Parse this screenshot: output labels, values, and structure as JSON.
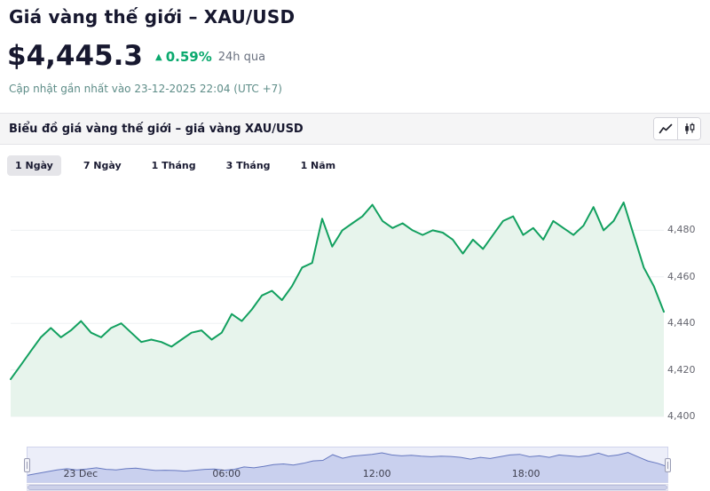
{
  "page_title": "Giá vàng thế giới – XAU/USD",
  "price_header": {
    "value": "$4,445.3",
    "direction_icon": "▲",
    "change_percent": "0.59%",
    "period_label": "24h qua",
    "updated_text": "Cập nhật gần nhất vào 23-12-2025 22:04 (UTC +7)",
    "up_color": "#0ba96e"
  },
  "panel": {
    "title": "Biểu đồ giá vàng thế giới – giá vàng XAU/USD",
    "icons": {
      "line_chart": "line-chart-icon",
      "candlestick": "candlestick-icon"
    }
  },
  "tabs": [
    {
      "label": "1 Ngày",
      "active": true
    },
    {
      "label": "7 Ngày",
      "active": false
    },
    {
      "label": "1 Tháng",
      "active": false
    },
    {
      "label": "3 Tháng",
      "active": false
    },
    {
      "label": "1 Năm",
      "active": false
    }
  ],
  "chart_data": {
    "type": "area",
    "title": "Biểu đồ giá vàng thế giới – giá vàng XAU/USD",
    "legend": "none",
    "grid": true,
    "ylim": [
      4400,
      4500
    ],
    "line_color": "#12a05f",
    "fill_color": "#e7f4ec",
    "grid_color": "#eef0f3",
    "nav_line_color": "#6678c0",
    "nav_fill_color": "#c9d0ee",
    "y_ticks": [
      {
        "label": "4,480",
        "value": 4480
      },
      {
        "label": "4,460",
        "value": 4460
      },
      {
        "label": "4,440",
        "value": 4440
      },
      {
        "label": "4,420",
        "value": 4420
      },
      {
        "label": "4,400",
        "value": 4400
      }
    ],
    "x_ticks": [
      {
        "label": "23 Dec",
        "pos": 0.083
      },
      {
        "label": "06:00",
        "pos": 0.311
      },
      {
        "label": "12:00",
        "pos": 0.546
      },
      {
        "label": "18:00",
        "pos": 0.779
      }
    ],
    "series": [
      {
        "name": "XAU/USD",
        "values": [
          4416,
          4422,
          4428,
          4434,
          4438,
          4434,
          4437,
          4441,
          4436,
          4434,
          4438,
          4440,
          4436,
          4432,
          4433,
          4432,
          4430,
          4433,
          4436,
          4437,
          4433,
          4436,
          4444,
          4441,
          4446,
          4452,
          4454,
          4450,
          4456,
          4464,
          4466,
          4485,
          4473,
          4480,
          4483,
          4486,
          4491,
          4484,
          4481,
          4483,
          4480,
          4478,
          4480,
          4479,
          4476,
          4470,
          4476,
          4472,
          4478,
          4484,
          4486,
          4478,
          4481,
          4476,
          4484,
          4481,
          4478,
          4482,
          4490,
          4480,
          4484,
          4492,
          4478,
          4464,
          4456,
          4445
        ]
      }
    ]
  }
}
